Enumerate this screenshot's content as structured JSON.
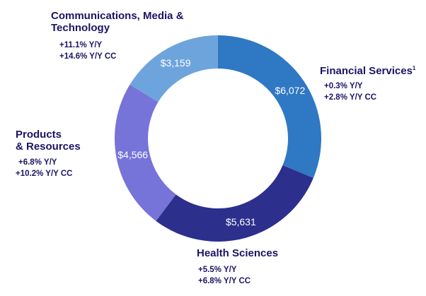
{
  "chart_data": {
    "type": "pie",
    "variant": "donut",
    "slices": [
      {
        "label": "Financial Services",
        "footnote": "1",
        "value": 6072,
        "display": "$6,072",
        "color": "#2f78c4",
        "stats": [
          "+0.3%  Y/Y",
          "+2.8%  Y/Y CC"
        ]
      },
      {
        "label": "Health Sciences",
        "footnote": "",
        "value": 5631,
        "display": "$5,631",
        "color": "#2c2f8c",
        "stats": [
          "+5.5%  Y/Y",
          "+6.8%  Y/Y CC"
        ]
      },
      {
        "label": "Products & Resources",
        "label_lines": [
          "Products",
          "& Resources"
        ],
        "footnote": "",
        "value": 4566,
        "display": "$4,566",
        "color": "#7674d9",
        "stats": [
          "+6.8%  Y/Y",
          "+10.2%  Y/Y CC"
        ]
      },
      {
        "label": "Communications, Media & Technology",
        "label_lines": [
          "Communications, Media &",
          "Technology"
        ],
        "footnote": "",
        "value": 3159,
        "display": "$3,159",
        "color": "#6ea4dc",
        "stats": [
          "+11.1%  Y/Y",
          "+14.6%  Y/Y CC"
        ]
      }
    ]
  }
}
